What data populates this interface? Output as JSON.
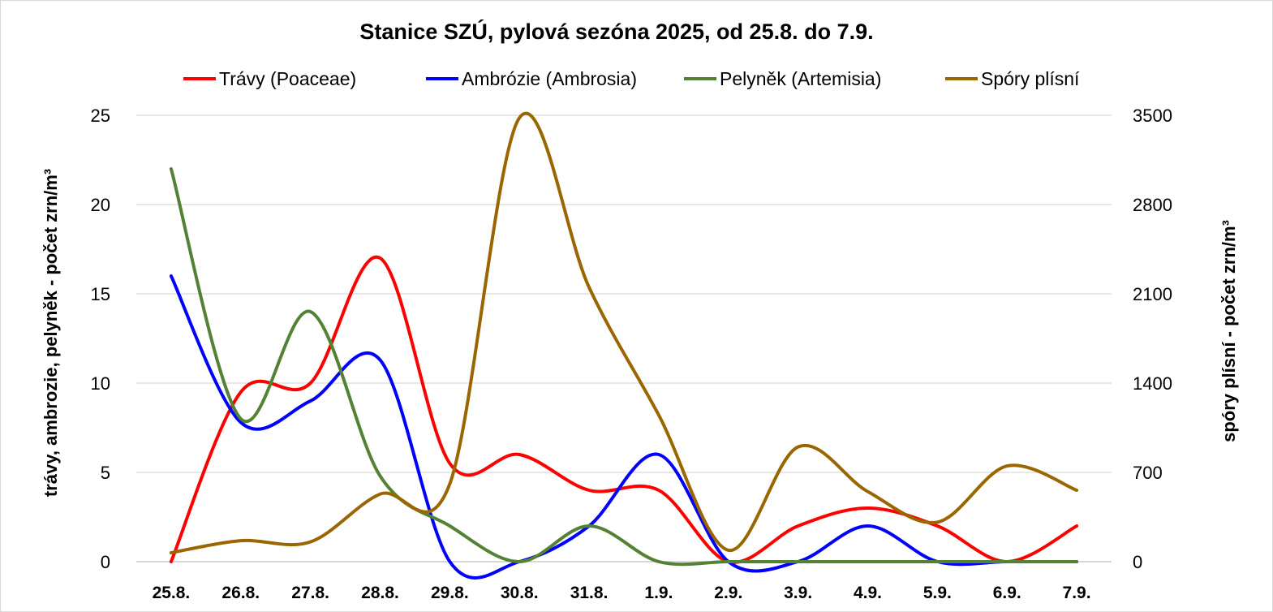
{
  "chart_data": {
    "type": "line",
    "title": "Stanice SZÚ, pylová sezóna 2025, od 25.8. do 7.9.",
    "categories": [
      "25.8.",
      "26.8.",
      "27.8.",
      "28.8.",
      "29.8.",
      "30.8.",
      "31.8.",
      "1.9.",
      "2.9.",
      "3.9.",
      "4.9.",
      "5.9.",
      "6.9.",
      "7.9."
    ],
    "ylabel_left": "trávy, ambrozie, pelyněk - počet zrn/m³",
    "ylabel_right": "spóry plísní - počet zrn/m³",
    "ylim_left": [
      0,
      25
    ],
    "ylim_right": [
      0,
      3500
    ],
    "yticks_left": [
      "0",
      "5",
      "10",
      "15",
      "20",
      "25"
    ],
    "yticks_right": [
      "0",
      "700",
      "1400",
      "2100",
      "2800",
      "3500"
    ],
    "grid": true,
    "legend_position": "top",
    "series": [
      {
        "name": "Trávy (Poaceae)",
        "axis": "left",
        "color": "#ff0000",
        "values": [
          0,
          9.5,
          10,
          17,
          5.5,
          6,
          4,
          4,
          0,
          2,
          3,
          2,
          0,
          2
        ]
      },
      {
        "name": "Ambrózie (Ambrosia)",
        "axis": "left",
        "color": "#0000ff",
        "values": [
          16,
          7.8,
          9,
          11.3,
          0,
          0,
          2,
          6,
          0,
          0,
          2,
          0,
          0,
          0
        ]
      },
      {
        "name": "Pelyněk (Artemisia)",
        "axis": "left",
        "color": "#548235",
        "values": [
          22,
          8,
          14,
          4.8,
          2,
          0,
          2,
          0,
          0,
          0,
          0,
          0,
          0,
          0
        ]
      },
      {
        "name": "Spóry plísní",
        "axis": "right",
        "color": "#996600",
        "values": [
          70,
          165,
          155,
          530,
          610,
          3480,
          2150,
          1150,
          90,
          900,
          550,
          310,
          750,
          560
        ]
      }
    ]
  }
}
